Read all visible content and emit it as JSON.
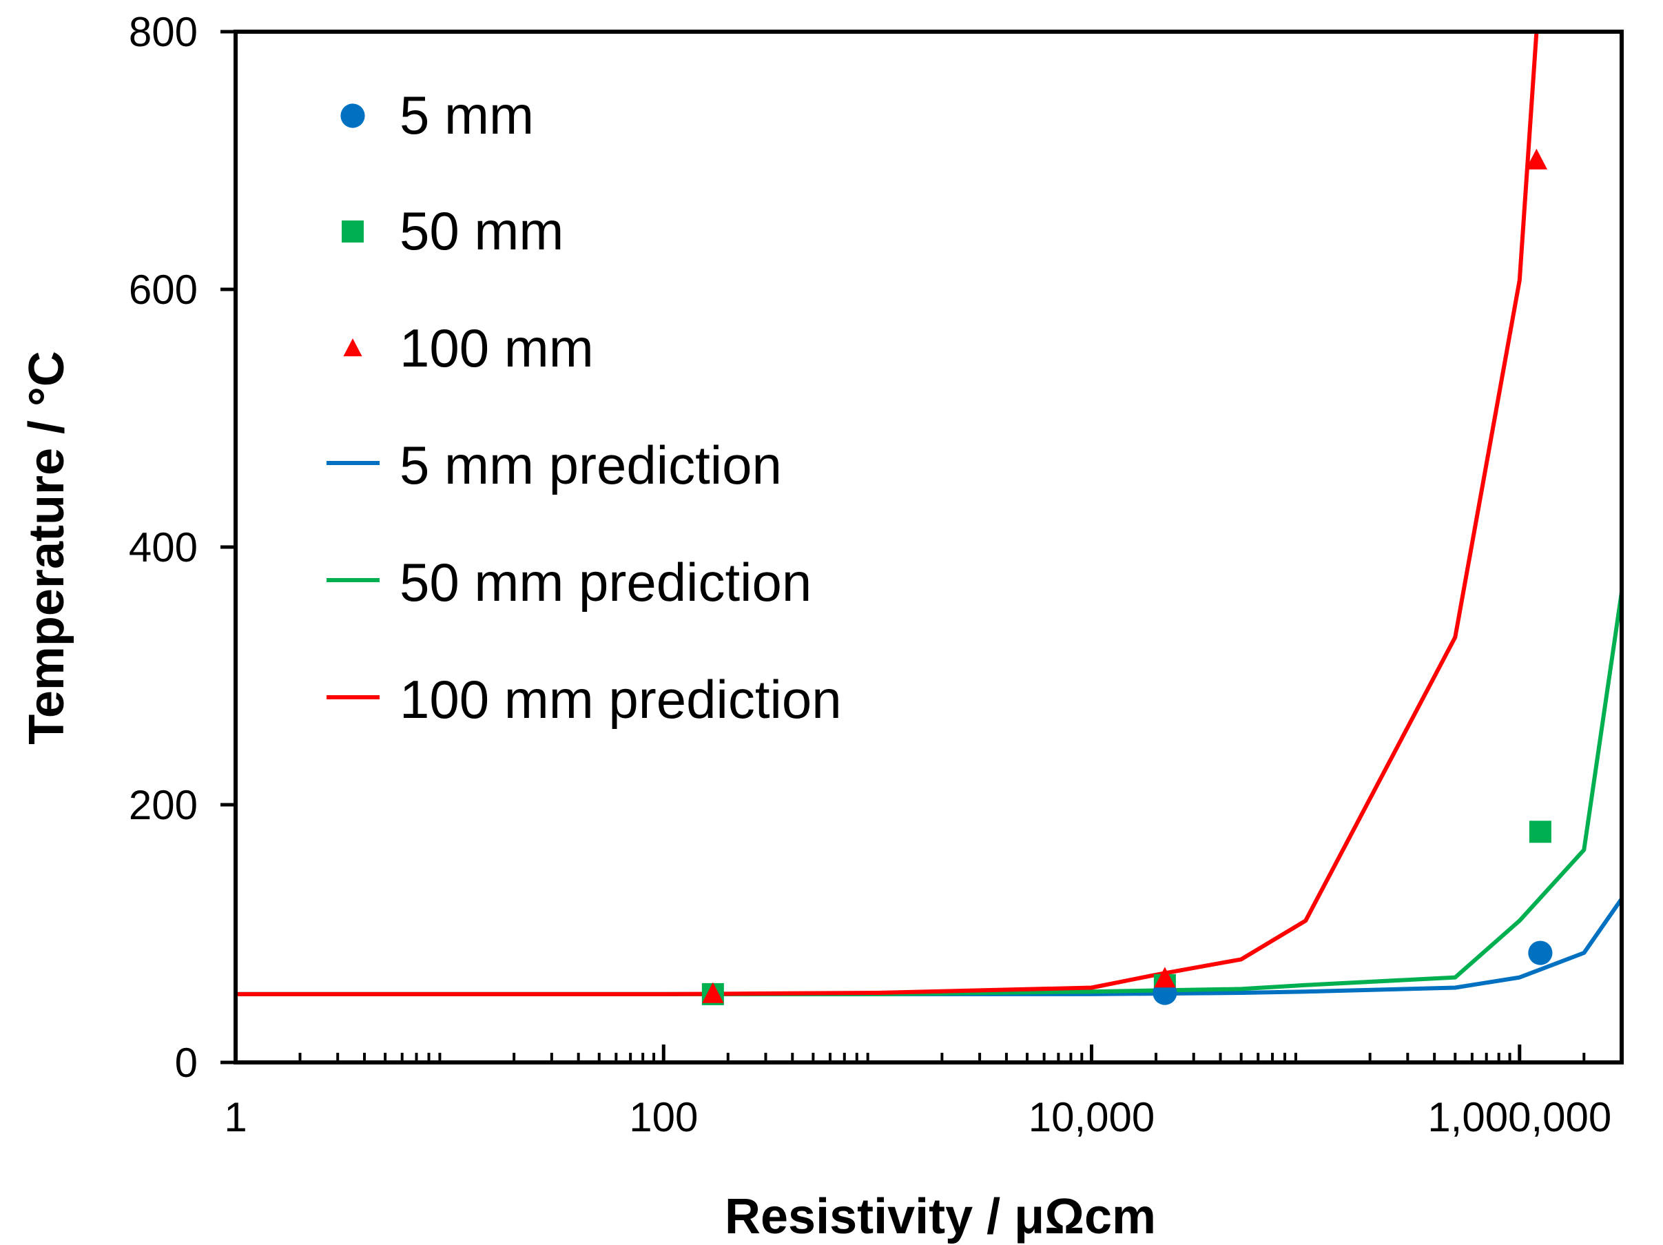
{
  "chart_data": {
    "type": "scatter",
    "title": "",
    "xlabel": "Resistivity /  μΩcm",
    "ylabel": "Temperature / °C",
    "xscale": "log",
    "xlim": [
      1,
      3000000
    ],
    "ylim": [
      0,
      800
    ],
    "x_ticks": [
      {
        "value": 1,
        "label": "1"
      },
      {
        "value": 100,
        "label": "100"
      },
      {
        "value": 10000,
        "label": "10,000"
      },
      {
        "value": 1000000,
        "label": "1,000,000"
      }
    ],
    "y_ticks": [
      {
        "value": 0,
        "label": "0"
      },
      {
        "value": 200,
        "label": "200"
      },
      {
        "value": 400,
        "label": "400"
      },
      {
        "value": 600,
        "label": "600"
      },
      {
        "value": 800,
        "label": "800"
      }
    ],
    "grid": false,
    "legend_position": "top-left",
    "series": [
      {
        "name": "5 mm",
        "kind": "marker",
        "marker": "circle",
        "color": "#0070C0",
        "x": [
          22000,
          1250000
        ],
        "y": [
          54,
          85
        ]
      },
      {
        "name": "50 mm",
        "kind": "marker",
        "marker": "square",
        "color": "#00B050",
        "x": [
          170,
          22000,
          1250000
        ],
        "y": [
          53,
          60,
          179
        ]
      },
      {
        "name": "100 mm",
        "kind": "marker",
        "marker": "triangle",
        "color": "#FF0000",
        "x": [
          170,
          22000,
          1200000
        ],
        "y": [
          53,
          65,
          700
        ]
      },
      {
        "name": "5 mm prediction",
        "kind": "line",
        "color": "#0070C0",
        "x": [
          1,
          100,
          1000,
          10000,
          50000,
          100000,
          500000,
          1000000,
          2000000,
          3000000
        ],
        "y": [
          53,
          53,
          53,
          53,
          54,
          55,
          58,
          66,
          85,
          127
        ]
      },
      {
        "name": "50 mm prediction",
        "kind": "line",
        "color": "#00B050",
        "x": [
          1,
          100,
          1000,
          10000,
          50000,
          100000,
          500000,
          1000000,
          2000000,
          3000000
        ],
        "y": [
          53,
          53,
          53,
          55,
          57,
          60,
          66,
          110,
          165,
          365
        ]
      },
      {
        "name": "100 mm prediction",
        "kind": "line",
        "color": "#FF0000",
        "x": [
          1,
          100,
          1000,
          10000,
          20000,
          50000,
          100000,
          500000,
          1000000,
          1200000
        ],
        "y": [
          53,
          53,
          54,
          58,
          68,
          80,
          110,
          330,
          607,
          800
        ]
      }
    ]
  }
}
